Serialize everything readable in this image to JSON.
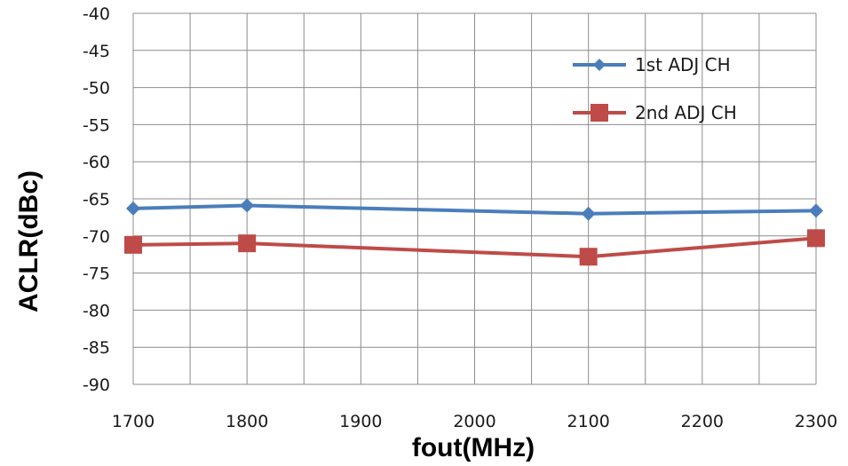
{
  "chart_data": {
    "type": "line",
    "xlabel": "fout(MHz)",
    "ylabel": "ACLR(dBc)",
    "xlim": [
      1700,
      2300
    ],
    "ylim": [
      -90,
      -40
    ],
    "xticks": [
      1700,
      1800,
      1900,
      2000,
      2100,
      2200,
      2300
    ],
    "yticks": [
      -40,
      -45,
      -50,
      -55,
      -60,
      -65,
      -70,
      -75,
      -80,
      -85,
      -90
    ],
    "x_minor_step": 50,
    "grid": true,
    "legend_position": "top-right",
    "series": [
      {
        "name": "1st ADJ CH",
        "color": "#4a7ebb",
        "marker": "diamond",
        "x": [
          1700,
          1800,
          2100,
          2300
        ],
        "y": [
          -66.3,
          -65.9,
          -67.0,
          -66.6
        ]
      },
      {
        "name": "2nd ADJ CH",
        "color": "#be4b48",
        "marker": "square",
        "x": [
          1700,
          1800,
          2100,
          2300
        ],
        "y": [
          -71.2,
          -71.0,
          -72.8,
          -70.3
        ]
      }
    ]
  }
}
